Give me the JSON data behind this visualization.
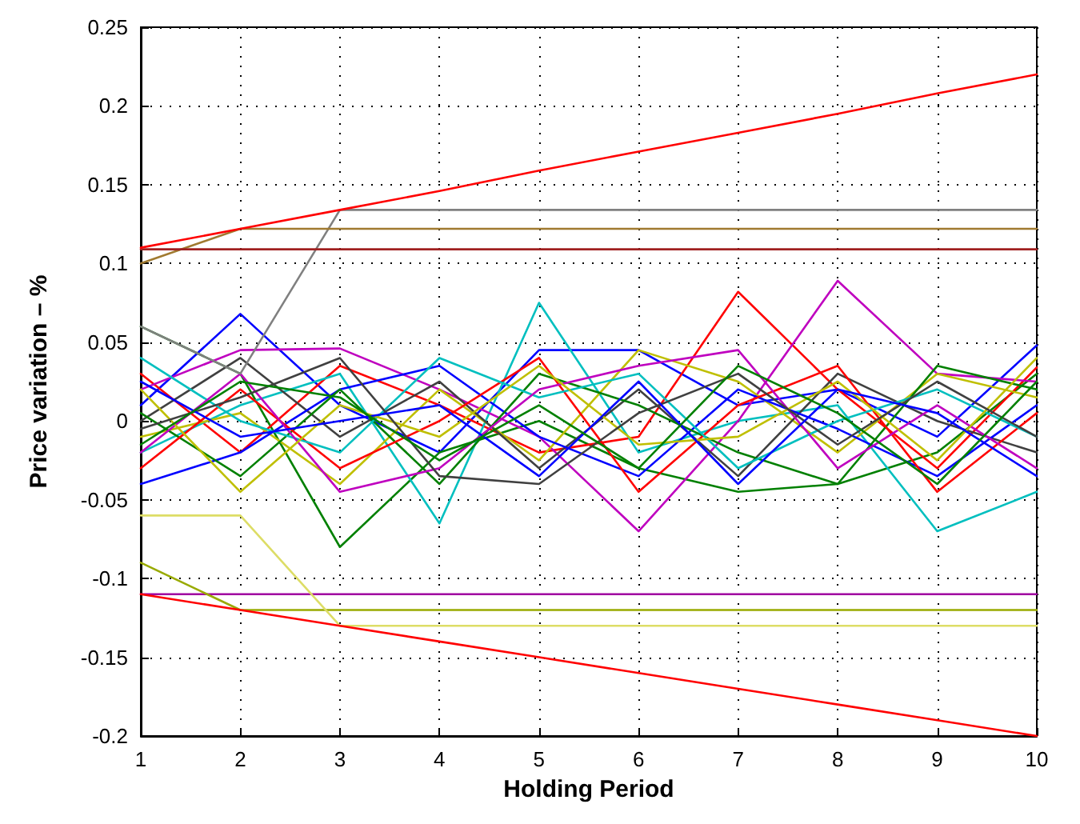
{
  "chart_data": {
    "type": "line",
    "xlabel": "Holding Period",
    "ylabel": "Price variation – %",
    "x": [
      1,
      2,
      3,
      4,
      5,
      6,
      7,
      8,
      9,
      10
    ],
    "xlim": [
      1,
      10
    ],
    "xticks": [
      1,
      2,
      3,
      4,
      5,
      6,
      7,
      8,
      9,
      10
    ],
    "ylim": [
      -0.2,
      0.25
    ],
    "yticks": [
      -0.2,
      -0.15,
      -0.1,
      -0.05,
      0,
      0.05,
      0.1,
      0.15,
      0.2,
      0.25
    ],
    "grid": true,
    "marker": "none",
    "line_style": "solid",
    "series": [
      {
        "color": "#0000ff",
        "values": [
          0.01,
          0.068,
          0.01,
          -0.02,
          0.045,
          0.045,
          0.01,
          0.02,
          -0.01,
          0.048
        ]
      },
      {
        "color": "#008000",
        "values": [
          0.06,
          0.03,
          -0.08,
          -0.02,
          0.0,
          -0.03,
          -0.045,
          -0.04,
          -0.02,
          0.03
        ]
      },
      {
        "color": "#ff0000",
        "values": [
          0.03,
          -0.02,
          0.035,
          0.01,
          -0.02,
          -0.01,
          0.082,
          0.02,
          -0.03,
          0.034
        ]
      },
      {
        "color": "#00bfbf",
        "values": [
          -0.02,
          0.01,
          0.03,
          -0.065,
          0.075,
          -0.02,
          0.0,
          0.01,
          -0.07,
          -0.045
        ]
      },
      {
        "color": "#bf00bf",
        "values": [
          0.02,
          0.045,
          0.046,
          0.02,
          -0.01,
          -0.07,
          0.0,
          0.089,
          0.03,
          0.025
        ]
      },
      {
        "color": "#bfbf00",
        "values": [
          -0.01,
          0.005,
          -0.04,
          0.02,
          -0.025,
          0.045,
          0.025,
          -0.02,
          0.03,
          0.015
        ]
      },
      {
        "color": "#404040",
        "values": [
          0.0,
          0.04,
          -0.01,
          0.025,
          -0.03,
          0.02,
          -0.035,
          0.03,
          0.0,
          -0.02
        ]
      },
      {
        "color": "#0000ff",
        "values": [
          -0.04,
          -0.02,
          0.02,
          0.035,
          -0.01,
          -0.035,
          0.02,
          -0.005,
          -0.035,
          0.01
        ]
      },
      {
        "color": "#008000",
        "values": [
          0.005,
          -0.035,
          0.02,
          -0.04,
          0.03,
          0.01,
          -0.02,
          -0.04,
          0.035,
          0.02
        ]
      },
      {
        "color": "#ff0000",
        "values": [
          -0.03,
          0.02,
          -0.03,
          0.0,
          0.04,
          -0.045,
          0.01,
          0.035,
          -0.045,
          0.005
        ]
      },
      {
        "color": "#00bfbf",
        "values": [
          0.04,
          0.0,
          -0.02,
          0.04,
          0.015,
          0.03,
          -0.03,
          0.0,
          0.02,
          -0.01
        ]
      },
      {
        "color": "#bf00bf",
        "values": [
          -0.02,
          0.03,
          -0.045,
          -0.03,
          0.02,
          0.035,
          0.045,
          -0.03,
          0.01,
          -0.03
        ]
      },
      {
        "color": "#bfbf00",
        "values": [
          0.02,
          -0.045,
          0.01,
          -0.01,
          0.035,
          -0.015,
          -0.01,
          0.025,
          -0.025,
          0.04
        ]
      },
      {
        "color": "#404040",
        "values": [
          -0.005,
          0.015,
          0.04,
          -0.035,
          -0.04,
          0.005,
          0.03,
          -0.015,
          0.025,
          -0.01
        ]
      },
      {
        "color": "#0000ff",
        "values": [
          0.025,
          -0.01,
          0.0,
          0.01,
          -0.035,
          0.025,
          -0.04,
          0.02,
          0.005,
          -0.035
        ]
      },
      {
        "color": "#008000",
        "values": [
          -0.015,
          0.025,
          0.015,
          -0.025,
          0.01,
          -0.03,
          0.035,
          0.005,
          -0.04,
          0.025
        ]
      },
      {
        "color": "#808080",
        "values": [
          0.06,
          0.03,
          0.134,
          0.134,
          0.134,
          0.134,
          0.134,
          0.134,
          0.134,
          0.134
        ]
      },
      {
        "color": "#a07a30",
        "values": [
          0.1,
          0.122,
          0.122,
          0.122,
          0.122,
          0.122,
          0.122,
          0.122,
          0.122,
          0.122
        ]
      },
      {
        "color": "#a02020",
        "values": [
          0.109,
          0.109,
          0.109,
          0.109,
          0.109,
          0.109,
          0.109,
          0.109,
          0.109,
          0.109
        ]
      },
      {
        "color": "#a000a0",
        "values": [
          -0.11,
          -0.11,
          -0.11,
          -0.11,
          -0.11,
          -0.11,
          -0.11,
          -0.11,
          -0.11,
          -0.11
        ]
      },
      {
        "color": "#99aa00",
        "values": [
          -0.09,
          -0.12,
          -0.12,
          -0.12,
          -0.12,
          -0.12,
          -0.12,
          -0.12,
          -0.12,
          -0.12
        ]
      },
      {
        "color": "#dddd66",
        "values": [
          -0.06,
          -0.06,
          -0.13,
          -0.13,
          -0.13,
          -0.13,
          -0.13,
          -0.13,
          -0.13,
          -0.13
        ]
      },
      {
        "color": "#ff0000",
        "values": [
          0.11,
          0.122,
          0.134,
          0.146,
          0.159,
          0.171,
          0.183,
          0.195,
          0.208,
          0.22
        ]
      },
      {
        "color": "#ff0000",
        "values": [
          -0.11,
          -0.12,
          -0.13,
          -0.14,
          -0.15,
          -0.16,
          -0.17,
          -0.18,
          -0.19,
          -0.2
        ]
      }
    ]
  }
}
